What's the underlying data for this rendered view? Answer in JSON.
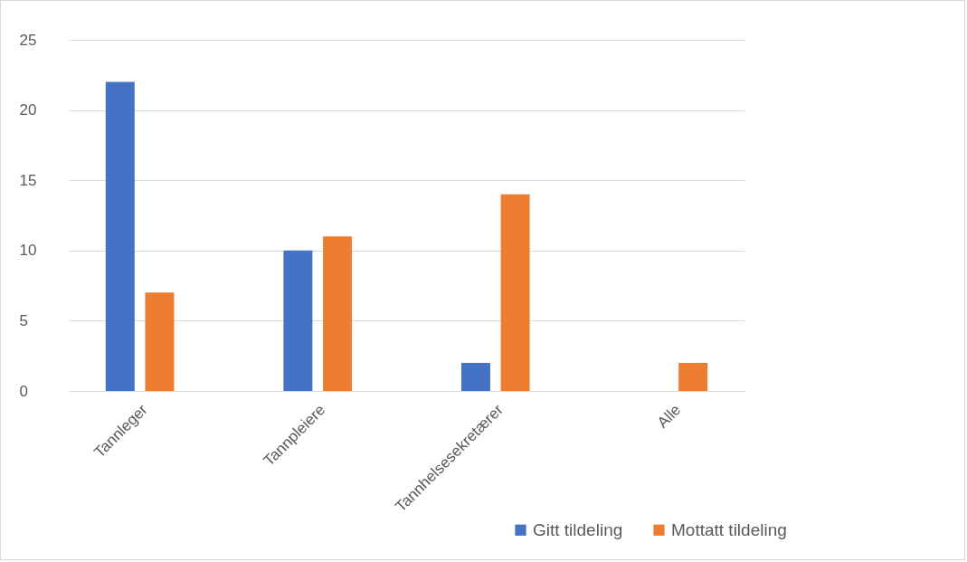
{
  "chart_data": {
    "type": "bar",
    "categories": [
      "Tannleger",
      "Tannpleiere",
      "Tannhelsesekretærer",
      "Alle"
    ],
    "series": [
      {
        "name": "Gitt tildeling",
        "color": "#4472c4",
        "values": [
          22,
          10,
          2,
          null
        ]
      },
      {
        "name": "Mottatt tildeling",
        "color": "#ed7d31",
        "values": [
          7,
          11,
          14,
          2
        ]
      }
    ],
    "ylim": [
      0,
      25
    ],
    "yticks": [
      0,
      5,
      10,
      15,
      20,
      25
    ],
    "grid": "y",
    "legend": "bottom"
  }
}
